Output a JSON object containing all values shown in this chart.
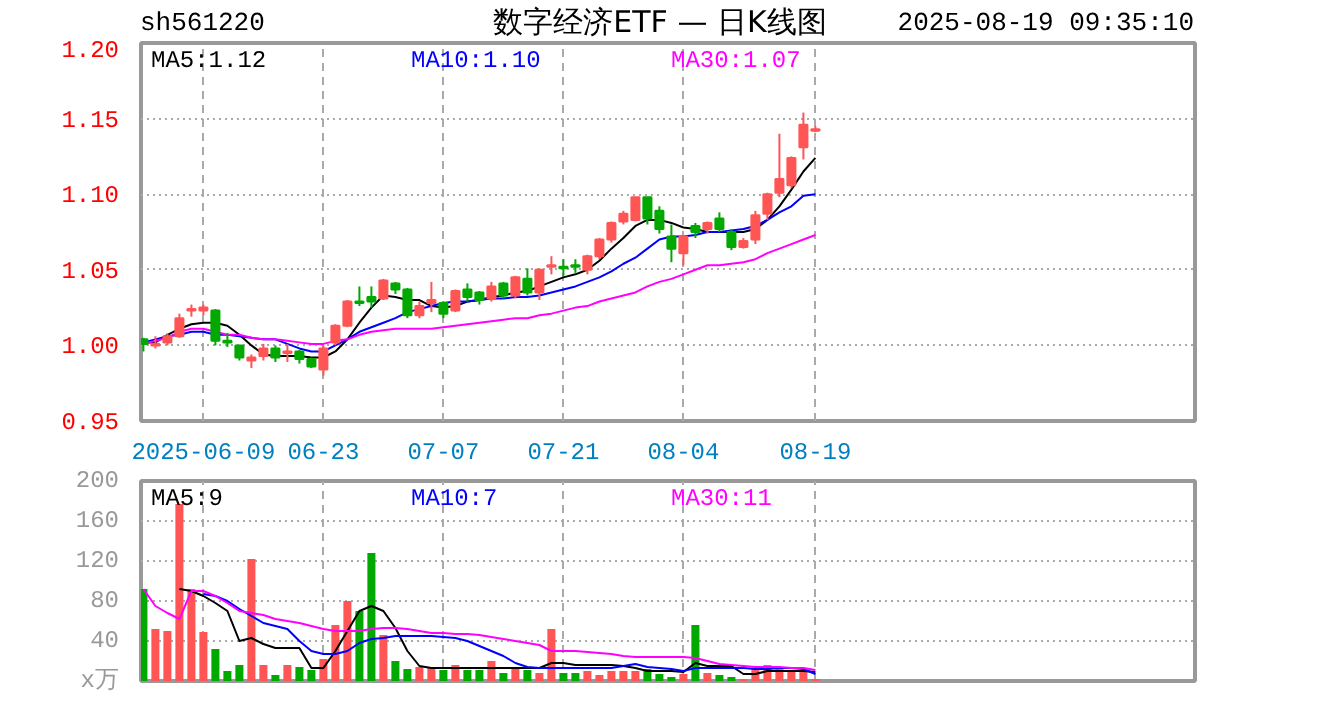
{
  "chart_data": [
    {
      "type": "candlestick",
      "title": "数字经济ETF — 日K线图",
      "annotations": [
        "sh561220",
        "2025-08-19 09:35:10"
      ],
      "categories": [
        null,
        null,
        null,
        null,
        null,
        "2025-06-09",
        null,
        null,
        null,
        null,
        null,
        null,
        null,
        null,
        null,
        "06-23",
        null,
        null,
        null,
        null,
        null,
        null,
        null,
        null,
        null,
        "07-07",
        null,
        null,
        null,
        null,
        null,
        null,
        null,
        null,
        null,
        "07-21",
        null,
        null,
        null,
        null,
        null,
        null,
        null,
        null,
        null,
        "08-04",
        null,
        null,
        null,
        null,
        null,
        null,
        null,
        null,
        null,
        null,
        "08-19"
      ],
      "ohlc": [
        [
          1.004,
          1.005,
          0.996,
          1.001
        ],
        [
          1.0,
          1.006,
          0.998,
          1.001
        ],
        [
          1.002,
          1.008,
          1.0,
          1.006
        ],
        [
          1.006,
          1.021,
          1.005,
          1.018
        ],
        [
          1.023,
          1.027,
          1.019,
          1.024
        ],
        [
          1.023,
          1.027,
          1.02,
          1.025
        ],
        [
          1.023,
          1.024,
          1.0,
          1.003
        ],
        [
          1.003,
          1.008,
          0.999,
          1.002
        ],
        [
          1.0,
          1.0,
          0.99,
          0.992
        ],
        [
          0.99,
          0.994,
          0.985,
          0.992
        ],
        [
          0.993,
          1.001,
          0.99,
          0.998
        ],
        [
          0.998,
          1.0,
          0.989,
          0.992
        ],
        [
          0.995,
          1.001,
          0.989,
          0.996
        ],
        [
          0.996,
          0.997,
          0.988,
          0.991
        ],
        [
          0.991,
          0.992,
          0.985,
          0.986
        ],
        [
          0.984,
          1.0,
          0.98,
          0.998
        ],
        [
          1.002,
          1.014,
          1.0,
          1.013
        ],
        [
          1.013,
          1.03,
          1.012,
          1.029
        ],
        [
          1.029,
          1.039,
          1.026,
          1.028
        ],
        [
          1.032,
          1.039,
          1.025,
          1.029
        ],
        [
          1.031,
          1.044,
          1.03,
          1.043
        ],
        [
          1.041,
          1.042,
          1.034,
          1.037
        ],
        [
          1.037,
          1.038,
          1.018,
          1.02
        ],
        [
          1.02,
          1.029,
          1.018,
          1.026
        ],
        [
          1.028,
          1.042,
          1.022,
          1.03
        ],
        [
          1.028,
          1.029,
          1.018,
          1.021
        ],
        [
          1.023,
          1.037,
          1.022,
          1.036
        ],
        [
          1.037,
          1.041,
          1.029,
          1.032
        ],
        [
          1.035,
          1.036,
          1.027,
          1.03
        ],
        [
          1.031,
          1.042,
          1.029,
          1.039
        ],
        [
          1.041,
          1.042,
          1.031,
          1.033
        ],
        [
          1.033,
          1.046,
          1.031,
          1.045
        ],
        [
          1.044,
          1.051,
          1.033,
          1.035
        ],
        [
          1.035,
          1.051,
          1.03,
          1.05
        ],
        [
          1.052,
          1.059,
          1.047,
          1.053
        ],
        [
          1.052,
          1.057,
          1.046,
          1.051
        ],
        [
          1.053,
          1.057,
          1.048,
          1.052
        ],
        [
          1.05,
          1.06,
          1.047,
          1.059
        ],
        [
          1.059,
          1.071,
          1.057,
          1.07
        ],
        [
          1.07,
          1.082,
          1.068,
          1.081
        ],
        [
          1.082,
          1.089,
          1.08,
          1.087
        ],
        [
          1.083,
          1.098,
          1.082,
          1.098
        ],
        [
          1.098,
          1.098,
          1.08,
          1.084
        ],
        [
          1.089,
          1.092,
          1.074,
          1.077
        ],
        [
          1.072,
          1.08,
          1.055,
          1.064
        ],
        [
          1.061,
          1.073,
          1.053,
          1.072
        ],
        [
          1.079,
          1.081,
          1.071,
          1.075
        ],
        [
          1.077,
          1.082,
          1.074,
          1.081
        ],
        [
          1.084,
          1.088,
          1.075,
          1.077
        ],
        [
          1.075,
          1.077,
          1.063,
          1.065
        ],
        [
          1.065,
          1.071,
          1.064,
          1.069
        ],
        [
          1.07,
          1.089,
          1.067,
          1.086
        ],
        [
          1.087,
          1.101,
          1.083,
          1.1
        ],
        [
          1.101,
          1.14,
          1.098,
          1.11
        ],
        [
          1.106,
          1.125,
          1.104,
          1.124
        ],
        [
          1.131,
          1.154,
          1.123,
          1.146
        ],
        [
          1.142,
          1.145,
          1.141,
          1.143
        ]
      ],
      "colors": [
        "#00a800",
        "#ff5555",
        "#ff5555",
        "#ff5555",
        "#ff5555",
        "#ff5555",
        "#00a800",
        "#00a800",
        "#00a800",
        "#ff5555",
        "#ff5555",
        "#00a800",
        "#ff5555",
        "#00a800",
        "#00a800",
        "#ff5555",
        "#ff5555",
        "#ff5555",
        "#00a800",
        "#00a800",
        "#ff5555",
        "#00a800",
        "#00a800",
        "#ff5555",
        "#ff5555",
        "#00a800",
        "#ff5555",
        "#00a800",
        "#00a800",
        "#ff5555",
        "#00a800",
        "#ff5555",
        "#00a800",
        "#ff5555",
        "#ff5555",
        "#00a800",
        "#00a800",
        "#ff5555",
        "#ff5555",
        "#ff5555",
        "#ff5555",
        "#ff5555",
        "#00a800",
        "#00a800",
        "#00a800",
        "#ff5555",
        "#00a800",
        "#ff5555",
        "#00a800",
        "#00a800",
        "#ff5555",
        "#ff5555",
        "#ff5555",
        "#ff5555",
        "#ff5555",
        "#ff5555",
        "#ff5555"
      ],
      "series": [
        {
          "type": "line",
          "name": "MA5:1.12",
          "color": "#000000",
          "values": [
            1.002,
            1.002,
            1.007,
            1.011,
            1.014,
            1.015,
            1.015,
            1.013,
            1.007,
            1.0,
            0.994,
            0.993,
            0.993,
            0.993,
            0.992,
            0.992,
            0.996,
            1.004,
            1.015,
            1.025,
            1.033,
            1.032,
            1.03,
            1.03,
            1.026,
            1.025,
            1.026,
            1.029,
            1.03,
            1.032,
            1.033,
            1.035,
            1.036,
            1.039,
            1.042,
            1.045,
            1.047,
            1.05,
            1.056,
            1.064,
            1.071,
            1.079,
            1.083,
            1.083,
            1.081,
            1.078,
            1.077,
            1.075,
            1.075,
            1.075,
            1.075,
            1.077,
            1.083,
            1.092,
            1.103,
            1.115,
            1.124
          ]
        },
        {
          "type": "line",
          "name": "MA10:1.10",
          "color": "#0000ff",
          "values": [
            1.002,
            1.004,
            1.006,
            1.007,
            1.009,
            1.009,
            1.007,
            1.007,
            1.006,
            1.005,
            1.004,
            1.004,
            1.001,
            0.998,
            0.996,
            0.996,
            1.0,
            1.004,
            1.009,
            1.012,
            1.015,
            1.018,
            1.022,
            1.024,
            1.026,
            1.028,
            1.029,
            1.029,
            1.03,
            1.031,
            1.031,
            1.032,
            1.032,
            1.033,
            1.035,
            1.037,
            1.039,
            1.042,
            1.045,
            1.049,
            1.054,
            1.058,
            1.064,
            1.07,
            1.072,
            1.072,
            1.073,
            1.075,
            1.075,
            1.076,
            1.077,
            1.079,
            1.083,
            1.088,
            1.092,
            1.099,
            1.1
          ]
        },
        {
          "type": "line",
          "name": "MA30:1.07",
          "color": "#ff00ff",
          "values": [
            1.001,
            1.003,
            1.005,
            1.009,
            1.011,
            1.011,
            1.009,
            1.007,
            1.007,
            1.005,
            1.004,
            1.004,
            1.003,
            1.002,
            1.001,
            1.001,
            1.003,
            1.004,
            1.007,
            1.009,
            1.01,
            1.011,
            1.011,
            1.011,
            1.011,
            1.012,
            1.013,
            1.014,
            1.015,
            1.016,
            1.017,
            1.018,
            1.018,
            1.02,
            1.021,
            1.023,
            1.025,
            1.026,
            1.029,
            1.031,
            1.033,
            1.035,
            1.039,
            1.042,
            1.044,
            1.047,
            1.05,
            1.053,
            1.053,
            1.054,
            1.055,
            1.057,
            1.061,
            1.064,
            1.067,
            1.07,
            1.073
          ]
        }
      ],
      "ylim": [
        0.95,
        1.2
      ],
      "yticks": [
        {
          "value": 0.95,
          "label": "0.95"
        },
        {
          "value": 1.0,
          "label": "1.00"
        },
        {
          "value": 1.05,
          "label": "1.05"
        },
        {
          "value": 1.1,
          "label": "1.10"
        },
        {
          "value": 1.15,
          "label": "1.15"
        },
        {
          "value": 1.2,
          "label": "1.20"
        }
      ],
      "grid": true
    },
    {
      "type": "bar",
      "categories": [
        null,
        null,
        null,
        null,
        null,
        null,
        null,
        null,
        null,
        null,
        null,
        null,
        null,
        null,
        null,
        null,
        null,
        null,
        null,
        null,
        null,
        null,
        null,
        null,
        null,
        null,
        null,
        null,
        null,
        null,
        null,
        null,
        null,
        null,
        null,
        null,
        null,
        null,
        null,
        null,
        null,
        null,
        null,
        null,
        null,
        null,
        null,
        null,
        null,
        null,
        null,
        null,
        null,
        null,
        null,
        null,
        null
      ],
      "series": [
        {
          "type": "bar",
          "values": [
            92,
            52,
            50,
            177,
            92,
            49,
            32,
            10,
            16,
            122,
            16,
            6,
            16,
            14,
            11,
            22,
            56,
            80,
            70,
            128,
            46,
            20,
            12,
            14,
            14,
            11,
            16,
            11,
            11,
            20,
            8,
            14,
            11,
            8,
            52,
            8,
            8,
            10,
            6,
            10,
            10,
            10,
            12,
            7,
            4,
            7,
            56,
            8,
            6,
            4,
            2,
            13,
            16,
            12,
            9,
            11,
            2
          ],
          "colors": [
            "#00a800",
            "#ff5555",
            "#ff5555",
            "#ff5555",
            "#ff5555",
            "#ff5555",
            "#00a800",
            "#00a800",
            "#00a800",
            "#ff5555",
            "#ff5555",
            "#00a800",
            "#ff5555",
            "#00a800",
            "#00a800",
            "#ff5555",
            "#ff5555",
            "#ff5555",
            "#00a800",
            "#00a800",
            "#ff5555",
            "#00a800",
            "#00a800",
            "#ff5555",
            "#ff5555",
            "#00a800",
            "#ff5555",
            "#00a800",
            "#00a800",
            "#ff5555",
            "#00a800",
            "#ff5555",
            "#00a800",
            "#ff5555",
            "#ff5555",
            "#00a800",
            "#00a800",
            "#ff5555",
            "#ff5555",
            "#ff5555",
            "#ff5555",
            "#ff5555",
            "#00a800",
            "#00a800",
            "#00a800",
            "#ff5555",
            "#00a800",
            "#ff5555",
            "#00a800",
            "#00a800",
            "#ff5555",
            "#ff5555",
            "#ff5555",
            "#ff5555",
            "#ff5555",
            "#ff5555",
            "#ff5555"
          ]
        },
        {
          "type": "line",
          "name": "MA5:9",
          "color": "#000000",
          "values": [
            null,
            null,
            null,
            92,
            90,
            85,
            78,
            70,
            40,
            43,
            37,
            33,
            33,
            33,
            13,
            13,
            30,
            50,
            70,
            75,
            70,
            53,
            30,
            15,
            13,
            13,
            13,
            13,
            13,
            13,
            13,
            13,
            13,
            13,
            18,
            18,
            16,
            16,
            16,
            16,
            15,
            13,
            10,
            10,
            10,
            9,
            18,
            15,
            15,
            15,
            7,
            7,
            10,
            10,
            10,
            10,
            9
          ]
        },
        {
          "type": "line",
          "name": "MA10:7",
          "color": "#0000ff",
          "values": [
            null,
            null,
            null,
            null,
            null,
            87,
            85,
            80,
            72,
            65,
            58,
            55,
            52,
            40,
            30,
            27,
            27,
            30,
            38,
            42,
            43,
            45,
            45,
            45,
            45,
            44,
            43,
            40,
            35,
            30,
            25,
            18,
            14,
            13,
            13,
            13,
            13,
            13,
            13,
            13,
            15,
            17,
            14,
            13,
            12,
            10,
            13,
            13,
            13,
            13,
            13,
            12,
            12,
            13,
            13,
            12,
            7
          ]
        },
        {
          "type": "line",
          "name": "MA30:11",
          "color": "#ff00ff",
          "values": [
            92,
            75,
            68,
            62,
            90,
            90,
            85,
            78,
            70,
            68,
            66,
            62,
            60,
            58,
            55,
            52,
            50,
            50,
            50,
            52,
            53,
            53,
            52,
            50,
            48,
            48,
            47,
            47,
            46,
            44,
            42,
            40,
            38,
            36,
            30,
            30,
            30,
            29,
            28,
            27,
            25,
            24,
            24,
            24,
            24,
            24,
            23,
            20,
            17,
            16,
            15,
            14,
            14,
            14,
            13,
            13,
            11
          ]
        }
      ],
      "ylim": [
        0,
        200
      ],
      "yticks": [
        {
          "value": 0,
          "label": "x万"
        },
        40,
        80,
        120,
        160,
        200
      ],
      "grid": true,
      "tick_labels": "y"
    }
  ]
}
